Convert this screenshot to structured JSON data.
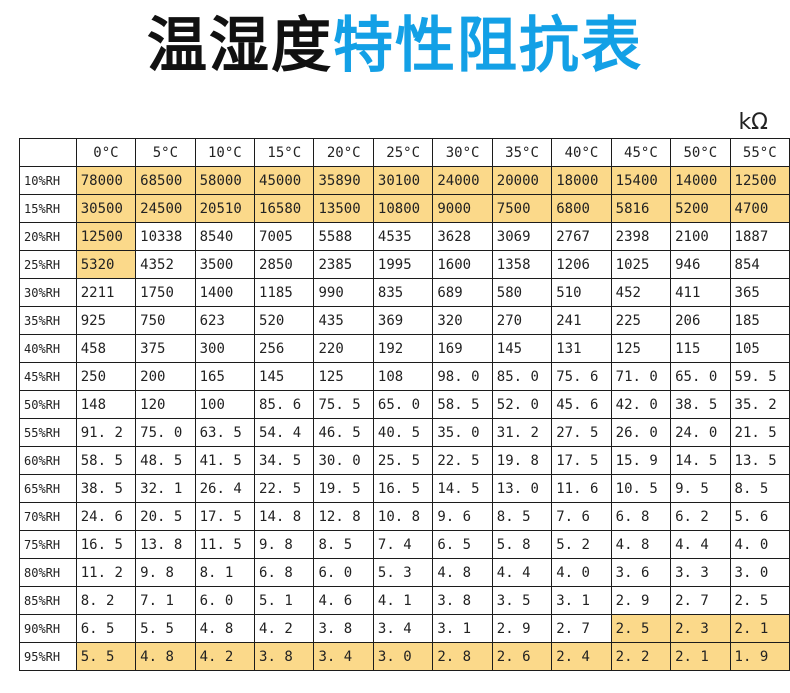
{
  "title": {
    "part1": "温湿度",
    "part2": "特性阻抗表"
  },
  "unit": "kΩ",
  "table": {
    "corner": "",
    "headers": [
      "0°C",
      "5°C",
      "10°C",
      "15°C",
      "20°C",
      "25°C",
      "30°C",
      "35°C",
      "40°C",
      "45°C",
      "50°C",
      "55°C"
    ],
    "rows": [
      {
        "label": "10%RH",
        "cells": [
          "78000",
          "68500",
          "58000",
          "45000",
          "35890",
          "30100",
          "24000",
          "20000",
          "18000",
          "15400",
          "14000",
          "12500"
        ],
        "hl": [
          1,
          1,
          1,
          1,
          1,
          1,
          1,
          1,
          1,
          1,
          1,
          1
        ]
      },
      {
        "label": "15%RH",
        "cells": [
          "30500",
          "24500",
          "20510",
          "16580",
          "13500",
          "10800",
          "9000",
          "7500",
          "6800",
          "5816",
          "5200",
          "4700"
        ],
        "hl": [
          1,
          1,
          1,
          1,
          1,
          1,
          1,
          1,
          1,
          1,
          1,
          1
        ]
      },
      {
        "label": "20%RH",
        "cells": [
          "12500",
          "10338",
          "8540",
          "7005",
          "5588",
          "4535",
          "3628",
          "3069",
          "2767",
          "2398",
          "2100",
          "1887"
        ],
        "hl": [
          1,
          0,
          0,
          0,
          0,
          0,
          0,
          0,
          0,
          0,
          0,
          0
        ]
      },
      {
        "label": "25%RH",
        "cells": [
          "5320",
          "4352",
          "3500",
          "2850",
          "2385",
          "1995",
          "1600",
          "1358",
          "1206",
          "1025",
          "946",
          "854"
        ],
        "hl": [
          1,
          0,
          0,
          0,
          0,
          0,
          0,
          0,
          0,
          0,
          0,
          0
        ]
      },
      {
        "label": "30%RH",
        "cells": [
          "2211",
          "1750",
          "1400",
          "1185",
          "990",
          "835",
          "689",
          "580",
          "510",
          "452",
          "411",
          "365"
        ],
        "hl": [
          0,
          0,
          0,
          0,
          0,
          0,
          0,
          0,
          0,
          0,
          0,
          0
        ]
      },
      {
        "label": "35%RH",
        "cells": [
          "925",
          "750",
          "623",
          "520",
          "435",
          "369",
          "320",
          "270",
          "241",
          "225",
          "206",
          "185"
        ],
        "hl": [
          0,
          0,
          0,
          0,
          0,
          0,
          0,
          0,
          0,
          0,
          0,
          0
        ]
      },
      {
        "label": "40%RH",
        "cells": [
          "458",
          "375",
          "300",
          "256",
          "220",
          "192",
          "169",
          "145",
          "131",
          "125",
          "115",
          "105"
        ],
        "hl": [
          0,
          0,
          0,
          0,
          0,
          0,
          0,
          0,
          0,
          0,
          0,
          0
        ]
      },
      {
        "label": "45%RH",
        "cells": [
          "250",
          "200",
          "165",
          "145",
          "125",
          "108",
          "98. 0",
          "85. 0",
          "75. 6",
          "71. 0",
          "65. 0",
          "59. 5"
        ],
        "hl": [
          0,
          0,
          0,
          0,
          0,
          0,
          0,
          0,
          0,
          0,
          0,
          0
        ]
      },
      {
        "label": "50%RH",
        "cells": [
          "148",
          "120",
          "100",
          "85. 6",
          "75. 5",
          "65. 0",
          "58. 5",
          "52. 0",
          "45. 6",
          "42. 0",
          "38. 5",
          "35. 2"
        ],
        "hl": [
          0,
          0,
          0,
          0,
          0,
          0,
          0,
          0,
          0,
          0,
          0,
          0
        ]
      },
      {
        "label": "55%RH",
        "cells": [
          "91. 2",
          "75. 0",
          "63. 5",
          "54. 4",
          "46. 5",
          "40. 5",
          "35. 0",
          "31. 2",
          "27. 5",
          "26. 0",
          "24. 0",
          "21. 5"
        ],
        "hl": [
          0,
          0,
          0,
          0,
          0,
          0,
          0,
          0,
          0,
          0,
          0,
          0
        ]
      },
      {
        "label": "60%RH",
        "cells": [
          "58. 5",
          "48. 5",
          "41. 5",
          "34. 5",
          "30. 0",
          "25. 5",
          "22. 5",
          "19. 8",
          "17. 5",
          "15. 9",
          "14. 5",
          "13. 5"
        ],
        "hl": [
          0,
          0,
          0,
          0,
          0,
          0,
          0,
          0,
          0,
          0,
          0,
          0
        ]
      },
      {
        "label": "65%RH",
        "cells": [
          "38. 5",
          "32. 1",
          "26. 4",
          "22. 5",
          "19. 5",
          "16. 5",
          "14. 5",
          "13. 0",
          "11. 6",
          "10. 5",
          "9. 5",
          "8. 5"
        ],
        "hl": [
          0,
          0,
          0,
          0,
          0,
          0,
          0,
          0,
          0,
          0,
          0,
          0
        ]
      },
      {
        "label": "70%RH",
        "cells": [
          "24. 6",
          "20. 5",
          "17. 5",
          "14. 8",
          "12. 8",
          "10. 8",
          "9. 6",
          "8. 5",
          "7. 6",
          "6. 8",
          "6. 2",
          "5. 6"
        ],
        "hl": [
          0,
          0,
          0,
          0,
          0,
          0,
          0,
          0,
          0,
          0,
          0,
          0
        ]
      },
      {
        "label": "75%RH",
        "cells": [
          "16. 5",
          "13. 8",
          "11. 5",
          "9. 8",
          "8. 5",
          "7. 4",
          "6. 5",
          "5. 8",
          "5. 2",
          "4. 8",
          "4. 4",
          "4. 0"
        ],
        "hl": [
          0,
          0,
          0,
          0,
          0,
          0,
          0,
          0,
          0,
          0,
          0,
          0
        ]
      },
      {
        "label": "80%RH",
        "cells": [
          "11. 2",
          "9. 8",
          "8. 1",
          "6. 8",
          "6. 0",
          "5. 3",
          "4. 8",
          "4. 4",
          "4. 0",
          "3. 6",
          "3. 3",
          "3. 0"
        ],
        "hl": [
          0,
          0,
          0,
          0,
          0,
          0,
          0,
          0,
          0,
          0,
          0,
          0
        ]
      },
      {
        "label": "85%RH",
        "cells": [
          "8. 2",
          "7. 1",
          "6. 0",
          "5. 1",
          "4. 6",
          "4. 1",
          "3. 8",
          "3. 5",
          "3. 1",
          "2. 9",
          "2. 7",
          "2. 5"
        ],
        "hl": [
          0,
          0,
          0,
          0,
          0,
          0,
          0,
          0,
          0,
          0,
          0,
          0
        ]
      },
      {
        "label": "90%RH",
        "cells": [
          "6. 5",
          "5. 5",
          "4. 8",
          "4. 2",
          "3. 8",
          "3. 4",
          "3. 1",
          "2. 9",
          "2. 7",
          "2. 5",
          "2. 3",
          "2. 1"
        ],
        "hl": [
          0,
          0,
          0,
          0,
          0,
          0,
          0,
          0,
          0,
          1,
          1,
          1
        ]
      },
      {
        "label": "95%RH",
        "cells": [
          "5. 5",
          "4. 8",
          "4. 2",
          "3. 8",
          "3. 4",
          "3. 0",
          "2. 8",
          "2. 6",
          "2. 4",
          "2. 2",
          "2. 1",
          "1. 9"
        ],
        "hl": [
          1,
          1,
          1,
          1,
          1,
          1,
          1,
          1,
          1,
          1,
          1,
          1
        ]
      }
    ]
  },
  "colors": {
    "highlight": "#fbd98a",
    "title_blue": "#13a0e6",
    "title_dark": "#111111"
  }
}
